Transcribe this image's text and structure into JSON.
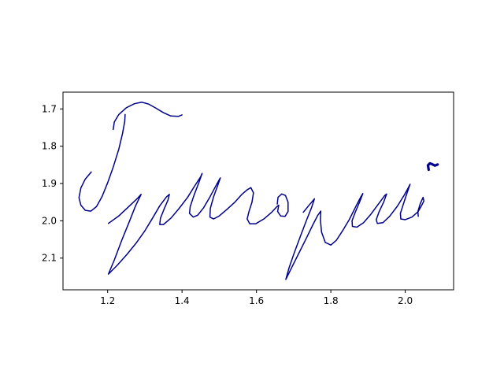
{
  "chart_data": {
    "type": "line",
    "title": "",
    "xlabel": "",
    "ylabel": "",
    "xlim": [
      1.08,
      2.13
    ],
    "ylim": [
      2.185,
      1.655
    ],
    "y_inverted": true,
    "grid": false,
    "legend": "none",
    "line_color": "#00008b",
    "x_ticks": [
      {
        "value": 1.2,
        "label": "1.2"
      },
      {
        "value": 1.4,
        "label": "1.4"
      },
      {
        "value": 1.6,
        "label": "1.6"
      },
      {
        "value": 1.8,
        "label": "1.8"
      },
      {
        "value": 2.0,
        "label": "2.0"
      }
    ],
    "y_ticks": [
      {
        "value": 1.7,
        "label": "1.7"
      },
      {
        "value": 1.8,
        "label": "1.8"
      },
      {
        "value": 1.9,
        "label": "1.9"
      },
      {
        "value": 2.0,
        "label": "2.0"
      },
      {
        "value": 2.1,
        "label": "2.1"
      }
    ],
    "series": [
      {
        "width": 1.5,
        "points": [
          [
            1.215,
            1.755
          ],
          [
            1.218,
            1.735
          ],
          [
            1.23,
            1.715
          ],
          [
            1.25,
            1.697
          ],
          [
            1.272,
            1.686
          ],
          [
            1.292,
            1.682
          ],
          [
            1.31,
            1.687
          ],
          [
            1.33,
            1.698
          ],
          [
            1.35,
            1.71
          ],
          [
            1.37,
            1.719
          ],
          [
            1.39,
            1.72
          ],
          [
            1.4,
            1.716
          ]
        ]
      },
      {
        "width": 1.5,
        "points": [
          [
            1.156,
            1.869
          ],
          [
            1.14,
            1.888
          ],
          [
            1.128,
            1.912
          ],
          [
            1.123,
            1.938
          ],
          [
            1.128,
            1.958
          ],
          [
            1.14,
            1.972
          ],
          [
            1.155,
            1.974
          ],
          [
            1.17,
            1.962
          ],
          [
            1.185,
            1.935
          ],
          [
            1.2,
            1.898
          ],
          [
            1.215,
            1.856
          ],
          [
            1.23,
            1.808
          ],
          [
            1.24,
            1.766
          ],
          [
            1.246,
            1.733
          ],
          [
            1.247,
            1.715
          ]
        ]
      },
      {
        "width": 1.5,
        "points": [
          [
            1.202,
            2.007
          ],
          [
            1.23,
            1.987
          ],
          [
            1.26,
            1.959
          ],
          [
            1.28,
            1.94
          ],
          [
            1.29,
            1.929
          ],
          [
            1.275,
            1.96
          ],
          [
            1.258,
            2.003
          ],
          [
            1.238,
            2.052
          ],
          [
            1.218,
            2.105
          ],
          [
            1.202,
            2.143
          ],
          [
            1.225,
            2.12
          ],
          [
            1.252,
            2.09
          ],
          [
            1.278,
            2.058
          ],
          [
            1.3,
            2.027
          ],
          [
            1.32,
            1.994
          ],
          [
            1.34,
            1.96
          ],
          [
            1.358,
            1.936
          ],
          [
            1.366,
            1.929
          ],
          [
            1.362,
            1.945
          ],
          [
            1.352,
            1.968
          ],
          [
            1.342,
            1.993
          ],
          [
            1.34,
            2.01
          ],
          [
            1.35,
            2.01
          ],
          [
            1.37,
            1.993
          ],
          [
            1.392,
            1.967
          ],
          [
            1.415,
            1.937
          ],
          [
            1.435,
            1.905
          ],
          [
            1.45,
            1.882
          ],
          [
            1.454,
            1.873
          ],
          [
            1.445,
            1.898
          ],
          [
            1.432,
            1.932
          ],
          [
            1.422,
            1.962
          ],
          [
            1.42,
            1.98
          ],
          [
            1.43,
            1.99
          ],
          [
            1.442,
            1.985
          ],
          [
            1.458,
            1.965
          ],
          [
            1.475,
            1.936
          ],
          [
            1.49,
            1.908
          ],
          [
            1.5,
            1.89
          ],
          [
            1.503,
            1.885
          ],
          [
            1.496,
            1.905
          ],
          [
            1.485,
            1.935
          ],
          [
            1.476,
            1.967
          ],
          [
            1.475,
            1.99
          ],
          [
            1.485,
            1.995
          ],
          [
            1.5,
            1.987
          ],
          [
            1.52,
            1.97
          ],
          [
            1.542,
            1.95
          ],
          [
            1.56,
            1.93
          ],
          [
            1.575,
            1.917
          ],
          [
            1.585,
            1.911
          ],
          [
            1.592,
            1.925
          ],
          [
            1.588,
            1.95
          ],
          [
            1.58,
            1.975
          ],
          [
            1.575,
            1.995
          ],
          [
            1.582,
            2.008
          ],
          [
            1.598,
            2.008
          ],
          [
            1.62,
            1.995
          ],
          [
            1.64,
            1.978
          ],
          [
            1.655,
            1.962
          ],
          [
            1.66,
            1.958
          ],
          [
            1.657,
            1.975
          ],
          [
            1.665,
            1.987
          ],
          [
            1.677,
            1.988
          ],
          [
            1.685,
            1.975
          ],
          [
            1.685,
            1.95
          ],
          [
            1.678,
            1.932
          ],
          [
            1.668,
            1.928
          ],
          [
            1.658,
            1.937
          ],
          [
            1.656,
            1.955
          ]
        ]
      },
      {
        "width": 1.5,
        "points": [
          [
            1.726,
            1.977
          ],
          [
            1.74,
            1.96
          ],
          [
            1.756,
            1.941
          ],
          [
            1.748,
            1.965
          ],
          [
            1.734,
            2.0
          ],
          [
            1.718,
            2.042
          ],
          [
            1.702,
            2.085
          ],
          [
            1.688,
            2.125
          ],
          [
            1.679,
            2.157
          ],
          [
            1.695,
            2.125
          ],
          [
            1.715,
            2.085
          ],
          [
            1.735,
            2.045
          ],
          [
            1.752,
            2.01
          ],
          [
            1.765,
            1.985
          ],
          [
            1.773,
            1.974
          ],
          [
            1.772,
            1.998
          ],
          [
            1.775,
            2.03
          ],
          [
            1.785,
            2.058
          ],
          [
            1.8,
            2.065
          ],
          [
            1.815,
            2.052
          ],
          [
            1.832,
            2.026
          ],
          [
            1.85,
            1.996
          ],
          [
            1.868,
            1.96
          ],
          [
            1.88,
            1.937
          ],
          [
            1.886,
            1.927
          ],
          [
            1.878,
            1.948
          ],
          [
            1.866,
            1.976
          ],
          [
            1.857,
            2.0
          ],
          [
            1.858,
            2.015
          ],
          [
            1.87,
            2.017
          ],
          [
            1.888,
            2.005
          ],
          [
            1.908,
            1.982
          ],
          [
            1.928,
            1.955
          ],
          [
            1.945,
            1.932
          ],
          [
            1.95,
            1.928
          ],
          [
            1.942,
            1.95
          ],
          [
            1.93,
            1.975
          ],
          [
            1.922,
            1.997
          ],
          [
            1.925,
            2.007
          ],
          [
            1.94,
            2.005
          ],
          [
            1.958,
            1.988
          ],
          [
            1.978,
            1.962
          ],
          [
            1.998,
            1.93
          ],
          [
            2.01,
            1.908
          ],
          [
            2.013,
            1.902
          ],
          [
            2.005,
            1.925
          ],
          [
            1.995,
            1.955
          ],
          [
            1.987,
            1.98
          ],
          [
            1.988,
            1.995
          ],
          [
            2.0,
            1.997
          ],
          [
            2.018,
            1.99
          ],
          [
            2.035,
            1.975
          ],
          [
            2.045,
            1.957
          ],
          [
            2.05,
            1.947
          ],
          [
            2.048,
            1.937
          ],
          [
            2.04,
            1.955
          ],
          [
            2.034,
            1.975
          ],
          [
            2.035,
            1.988
          ]
        ]
      },
      {
        "width": 3.2,
        "points": [
          [
            2.063,
            1.863
          ],
          [
            2.061,
            1.851
          ],
          [
            2.066,
            1.846
          ],
          [
            2.072,
            1.848
          ],
          [
            2.08,
            1.852
          ],
          [
            2.087,
            1.849
          ]
        ]
      }
    ]
  }
}
